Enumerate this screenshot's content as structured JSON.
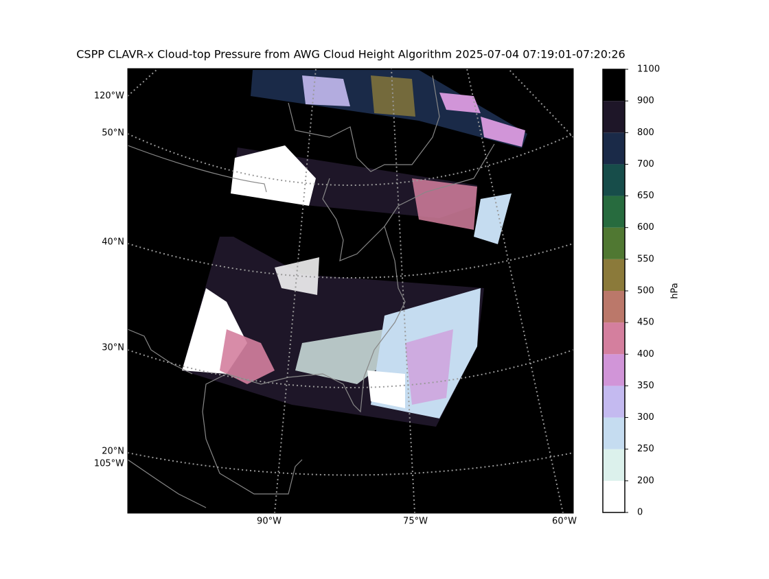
{
  "title": "CSPP CLAVR-x Cloud-top Pressure from AWG Cloud Height Algorithm 2025-07-04 07:19:01-07:20:26",
  "map": {
    "lat_labels": [
      "50°N",
      "40°N",
      "30°N",
      "20°N"
    ],
    "lon_labels_left": [
      "120°W",
      "105°W"
    ],
    "lon_labels_bottom": [
      "90°W",
      "75°W",
      "60°W"
    ]
  },
  "colorbar": {
    "label": "hPa",
    "ticks": [
      0,
      200,
      250,
      300,
      350,
      400,
      450,
      500,
      550,
      600,
      650,
      700,
      800,
      900,
      1100
    ],
    "colors": [
      "#ffffff",
      "#dcf1ec",
      "#c5dcf0",
      "#c4baf0",
      "#d195d8",
      "#d47f9e",
      "#bb786a",
      "#8b7a3a",
      "#507832",
      "#276b3e",
      "#174d4a",
      "#1a2a48",
      "#1e1628",
      "#000000"
    ]
  }
}
